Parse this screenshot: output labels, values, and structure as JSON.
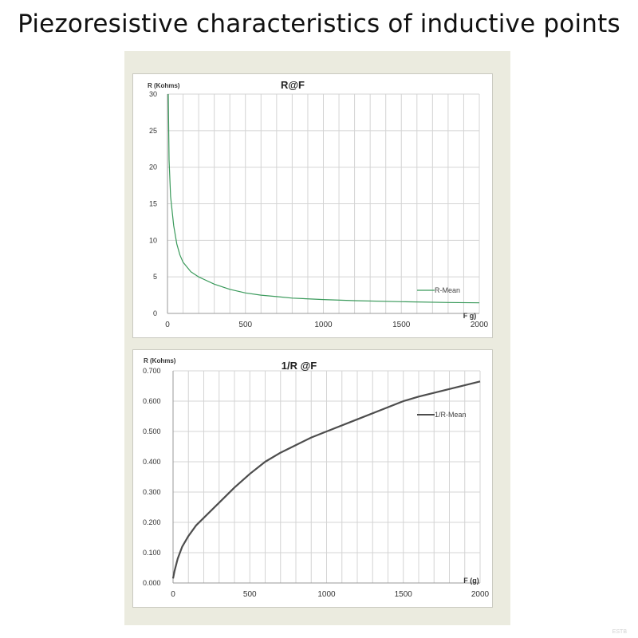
{
  "page": {
    "title": "Piezoresistive characteristics of inductive points",
    "watermark": "ESTB"
  },
  "chart_data": [
    {
      "type": "line",
      "title": "R@F",
      "xlabel": "F g)",
      "ylabel": "R (Kohms)",
      "xlim": [
        0,
        2000
      ],
      "ylim": [
        0,
        30
      ],
      "xticks": [
        0,
        500,
        1000,
        1500,
        2000
      ],
      "yticks": [
        0,
        5,
        10,
        15,
        20,
        25,
        30
      ],
      "ytick_labels": [
        "0",
        "5",
        "10",
        "15",
        "20",
        "25",
        "30"
      ],
      "grid": true,
      "legend_position": "right",
      "series": [
        {
          "name": "R-Mean",
          "color": "#3a9a5b",
          "x": [
            5,
            10,
            20,
            40,
            60,
            80,
            100,
            150,
            200,
            300,
            400,
            500,
            600,
            700,
            800,
            1000,
            1200,
            1500,
            1800,
            2000
          ],
          "y": [
            30,
            21,
            16,
            12,
            9.5,
            8,
            7,
            5.7,
            5,
            4,
            3.3,
            2.8,
            2.5,
            2.3,
            2.1,
            1.9,
            1.75,
            1.6,
            1.5,
            1.45
          ]
        }
      ]
    },
    {
      "type": "line",
      "title": "1/R @F",
      "xlabel": "F (g)",
      "ylabel": "R (Kohms)",
      "xlim": [
        0,
        2000
      ],
      "ylim": [
        0,
        0.7
      ],
      "xticks": [
        0,
        500,
        1000,
        1500,
        2000
      ],
      "yticks": [
        0,
        0.1,
        0.2,
        0.3,
        0.4,
        0.5,
        0.6,
        0.7
      ],
      "ytick_labels": [
        "0.000",
        "0.100",
        "0.200",
        "0.300",
        "0.400",
        "0.500",
        "0.600",
        "0.700"
      ],
      "grid": true,
      "legend_position": "right",
      "series": [
        {
          "name": "1/R-Mean",
          "color": "#4d4d4d",
          "x": [
            0,
            10,
            30,
            60,
            100,
            150,
            200,
            300,
            400,
            500,
            600,
            700,
            800,
            900,
            1000,
            1200,
            1400,
            1500,
            1600,
            1800,
            2000
          ],
          "y": [
            0.015,
            0.04,
            0.08,
            0.12,
            0.155,
            0.19,
            0.215,
            0.265,
            0.315,
            0.36,
            0.4,
            0.43,
            0.455,
            0.48,
            0.5,
            0.54,
            0.58,
            0.6,
            0.615,
            0.64,
            0.665
          ]
        }
      ]
    }
  ]
}
